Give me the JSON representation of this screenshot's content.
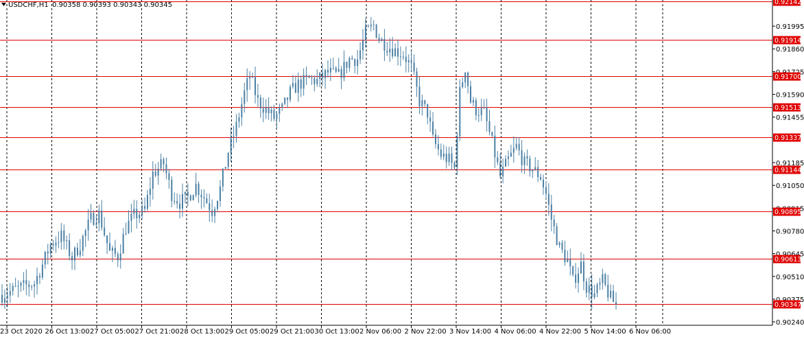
{
  "header": {
    "symbol_timeframe": "USDCHF,H1",
    "ohlc": "0.90358 0.90393 0.90343 0.90345"
  },
  "colors": {
    "candle": "#4a7fa3",
    "level_line": "#e00000",
    "level_label_bg": "#e00000",
    "grid": "#000000",
    "background": "#ffffff"
  },
  "chart_data": {
    "type": "candlestick",
    "symbol": "USDCHF",
    "timeframe": "H1",
    "ylim": [
      0.9022,
      0.9215
    ],
    "price_ticks": [
      "0.91995",
      "0.91860",
      "0.91725",
      "0.91590",
      "0.91455",
      "0.91185",
      "0.91050",
      "0.90915",
      "0.90780",
      "0.90645",
      "0.90510",
      "0.90375",
      "0.90240"
    ],
    "time_labels": [
      "23 Oct 2020",
      "26 Oct 13:00",
      "27 Oct 05:00",
      "27 Oct 21:00",
      "28 Oct 13:00",
      "29 Oct 05:00",
      "29 Oct 21:00",
      "30 Oct 13:00",
      "2 Nov 06:00",
      "2 Nov 22:00",
      "3 Nov 14:00",
      "4 Nov 06:00",
      "4 Nov 22:00",
      "5 Nov 14:00",
      "6 Nov 06:00"
    ],
    "levels": [
      "0.92142",
      "0.91914",
      "0.91700",
      "0.91513",
      "0.91337",
      "0.91144",
      "0.90895",
      "0.90613",
      "0.90347"
    ],
    "close_path": [
      [
        0,
        0.904
      ],
      [
        8,
        0.9045
      ],
      [
        12,
        0.9047
      ],
      [
        15,
        0.9058
      ],
      [
        18,
        0.907
      ],
      [
        22,
        0.9075
      ],
      [
        26,
        0.9062
      ],
      [
        29,
        0.907
      ],
      [
        33,
        0.9085
      ],
      [
        36,
        0.9088
      ],
      [
        40,
        0.9065
      ],
      [
        43,
        0.9063
      ],
      [
        46,
        0.908
      ],
      [
        49,
        0.9087
      ],
      [
        53,
        0.909
      ],
      [
        56,
        0.9112
      ],
      [
        60,
        0.9118
      ],
      [
        63,
        0.91
      ],
      [
        66,
        0.9095
      ],
      [
        69,
        0.9098
      ],
      [
        72,
        0.9105
      ],
      [
        75,
        0.9098
      ],
      [
        78,
        0.909
      ],
      [
        81,
        0.9103
      ],
      [
        84,
        0.9125
      ],
      [
        87,
        0.914
      ],
      [
        90,
        0.916
      ],
      [
        92,
        0.917
      ],
      [
        95,
        0.9155
      ],
      [
        98,
        0.915
      ],
      [
        101,
        0.9145
      ],
      [
        104,
        0.915
      ],
      [
        107,
        0.916
      ],
      [
        110,
        0.9165
      ],
      [
        114,
        0.9168
      ],
      [
        117,
        0.9167
      ],
      [
        121,
        0.9172
      ],
      [
        125,
        0.917
      ],
      [
        129,
        0.918
      ],
      [
        132,
        0.918
      ],
      [
        135,
        0.9195
      ],
      [
        138,
        0.92
      ],
      [
        140,
        0.9192
      ],
      [
        143,
        0.9188
      ],
      [
        146,
        0.9185
      ],
      [
        149,
        0.9183
      ],
      [
        152,
        0.9175
      ],
      [
        155,
        0.9155
      ],
      [
        158,
        0.9148
      ],
      [
        160,
        0.9132
      ],
      [
        163,
        0.9123
      ],
      [
        166,
        0.912
      ],
      [
        168,
        0.9115
      ],
      [
        170,
        0.916
      ],
      [
        172,
        0.9175
      ],
      [
        174,
        0.9155
      ],
      [
        176,
        0.915
      ],
      [
        179,
        0.9148
      ],
      [
        182,
        0.913
      ],
      [
        185,
        0.911
      ],
      [
        188,
        0.912
      ],
      [
        191,
        0.9128
      ],
      [
        194,
        0.9118
      ],
      [
        197,
        0.9115
      ],
      [
        200,
        0.911
      ],
      [
        202,
        0.91
      ],
      [
        204,
        0.9085
      ],
      [
        207,
        0.9068
      ],
      [
        210,
        0.906
      ],
      [
        212,
        0.9048
      ],
      [
        215,
        0.9058
      ],
      [
        217,
        0.9045
      ],
      [
        220,
        0.904
      ],
      [
        223,
        0.9048
      ],
      [
        226,
        0.9038
      ],
      [
        228,
        0.9034
      ]
    ]
  }
}
